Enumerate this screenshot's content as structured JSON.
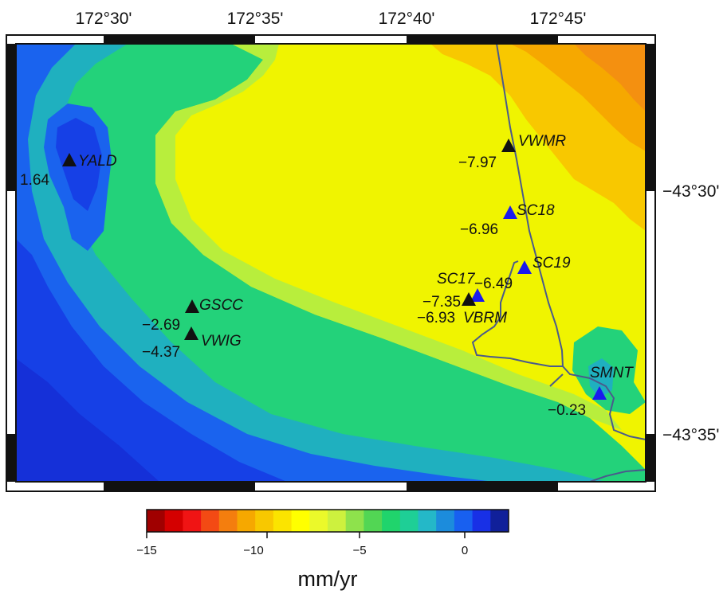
{
  "map": {
    "top_lon_labels": [
      "172°30'",
      "172°35'",
      "172°40'",
      "172°45'"
    ],
    "right_lat_labels": [
      "−43°30'",
      "−43°35'"
    ],
    "stations": [
      {
        "name": "YALD",
        "value": "1.64",
        "symbol": "black"
      },
      {
        "name": "VWMR",
        "value": "−7.97",
        "symbol": "black"
      },
      {
        "name": "SC18",
        "value": "−6.96",
        "symbol": "blue"
      },
      {
        "name": "SC19",
        "value": "",
        "symbol": "blue"
      },
      {
        "name": "SC17",
        "value": "−6.49",
        "symbol": "blue"
      },
      {
        "name": "VBRM",
        "value": "−7.35",
        "symbol": "black"
      },
      {
        "name": "",
        "value": "−6.93",
        "symbol": "black"
      },
      {
        "name": "GSCC",
        "value": "−2.69",
        "symbol": "black"
      },
      {
        "name": "VWIG",
        "value": "−4.37",
        "symbol": "black"
      },
      {
        "name": "SMNT",
        "value": "−0.23",
        "symbol": "blue"
      }
    ],
    "symbol_colors": {
      "black": "#111111",
      "blue": "#1a1aee"
    },
    "coastline_color": "#4a5a8c"
  },
  "colorbar": {
    "ticks": [
      "−15",
      "−10",
      "−5",
      "0"
    ],
    "unit": "mm/yr",
    "colors": [
      "#a00000",
      "#d40000",
      "#f01414",
      "#f34a14",
      "#f47e0e",
      "#f6a800",
      "#f8c800",
      "#fbe400",
      "#ffff00",
      "#ebf92a",
      "#cdf13e",
      "#8ee24c",
      "#52d654",
      "#20d46c",
      "#1ecf96",
      "#24b8c8",
      "#1c8cdc",
      "#1860f0",
      "#1830e6",
      "#10209a"
    ]
  }
}
